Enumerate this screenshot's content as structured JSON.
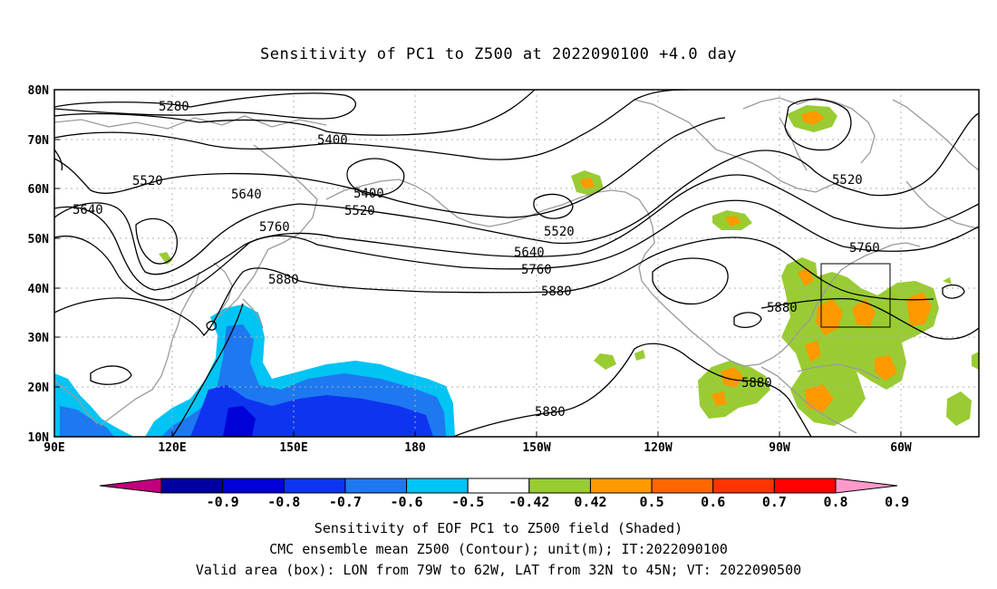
{
  "title": "Sensitivity of PC1 to Z500 at 2022090100 +4.0 day",
  "lat_labels": [
    "80N",
    "70N",
    "60N",
    "50N",
    "40N",
    "30N",
    "20N",
    "10N"
  ],
  "lon_labels": [
    "90E",
    "120E",
    "150E",
    "180",
    "150W",
    "120W",
    "90W",
    "60W"
  ],
  "contour_labels": [
    "5280",
    "5400",
    "5400",
    "5520",
    "5520",
    "5520",
    "5520",
    "5640",
    "5640",
    "5640",
    "5760",
    "5760",
    "5760",
    "5880",
    "5880",
    "5880",
    "5880",
    "5880"
  ],
  "colorbar": {
    "labels": [
      "-0.9",
      "-0.8",
      "-0.7",
      "-0.6",
      "-0.5",
      "-0.42",
      "0.42",
      "0.5",
      "0.6",
      "0.7",
      "0.8",
      "0.9"
    ],
    "colors": [
      "#c0007c",
      "#0000a0",
      "#0000d8",
      "#0d35f0",
      "#1e78f0",
      "#00c4f4",
      "#ffffff",
      "#99cc33",
      "#ff9900",
      "#ff6600",
      "#ff3300",
      "#ff0000",
      "#ff99cc"
    ]
  },
  "valid_box": {
    "lon_min": "79W",
    "lon_max": "62W",
    "lat_min": "32N",
    "lat_max": "45N"
  },
  "captions": [
    "Sensitivity of EOF PC1 to Z500 field (Shaded)",
    "CMC ensemble mean Z500 (Contour); unit(m); IT:2022090100",
    "Valid area (box): LON from 79W to 62W, LAT from 32N to 45N; VT: 2022090500"
  ]
}
